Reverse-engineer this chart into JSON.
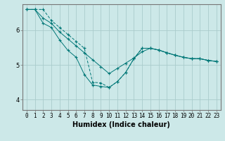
{
  "xlabel": "Humidex (Indice chaleur)",
  "background_color": "#cce8e8",
  "grid_color": "#aacccc",
  "line_color": "#007777",
  "tick_label_fontsize": 5.5,
  "xlabel_fontsize": 7,
  "x_ticks": [
    0,
    1,
    2,
    3,
    4,
    5,
    6,
    7,
    8,
    9,
    10,
    11,
    12,
    13,
    14,
    15,
    16,
    17,
    18,
    19,
    20,
    21,
    22,
    23
  ],
  "ylim": [
    3.7,
    6.75
  ],
  "xlim": [
    -0.5,
    23.5
  ],
  "yticks": [
    4,
    5,
    6
  ],
  "series1": [
    6.6,
    6.6,
    6.35,
    6.2,
    5.95,
    5.75,
    5.55,
    5.35,
    5.15,
    4.95,
    4.75,
    4.9,
    5.05,
    5.2,
    5.38,
    5.48,
    5.43,
    5.35,
    5.28,
    5.22,
    5.18,
    5.18,
    5.13,
    5.1
  ],
  "series2": [
    6.6,
    6.6,
    6.6,
    6.28,
    6.08,
    5.88,
    5.68,
    5.48,
    4.5,
    4.48,
    4.35,
    4.52,
    4.78,
    5.18,
    5.48,
    5.48,
    5.43,
    5.35,
    5.28,
    5.22,
    5.18,
    5.18,
    5.13,
    5.1
  ],
  "series3": [
    6.6,
    6.6,
    6.2,
    6.08,
    5.72,
    5.42,
    5.22,
    4.72,
    4.42,
    4.38,
    4.35,
    4.52,
    4.78,
    5.18,
    5.48,
    5.48,
    5.43,
    5.35,
    5.28,
    5.22,
    5.18,
    5.18,
    5.13,
    5.1
  ]
}
